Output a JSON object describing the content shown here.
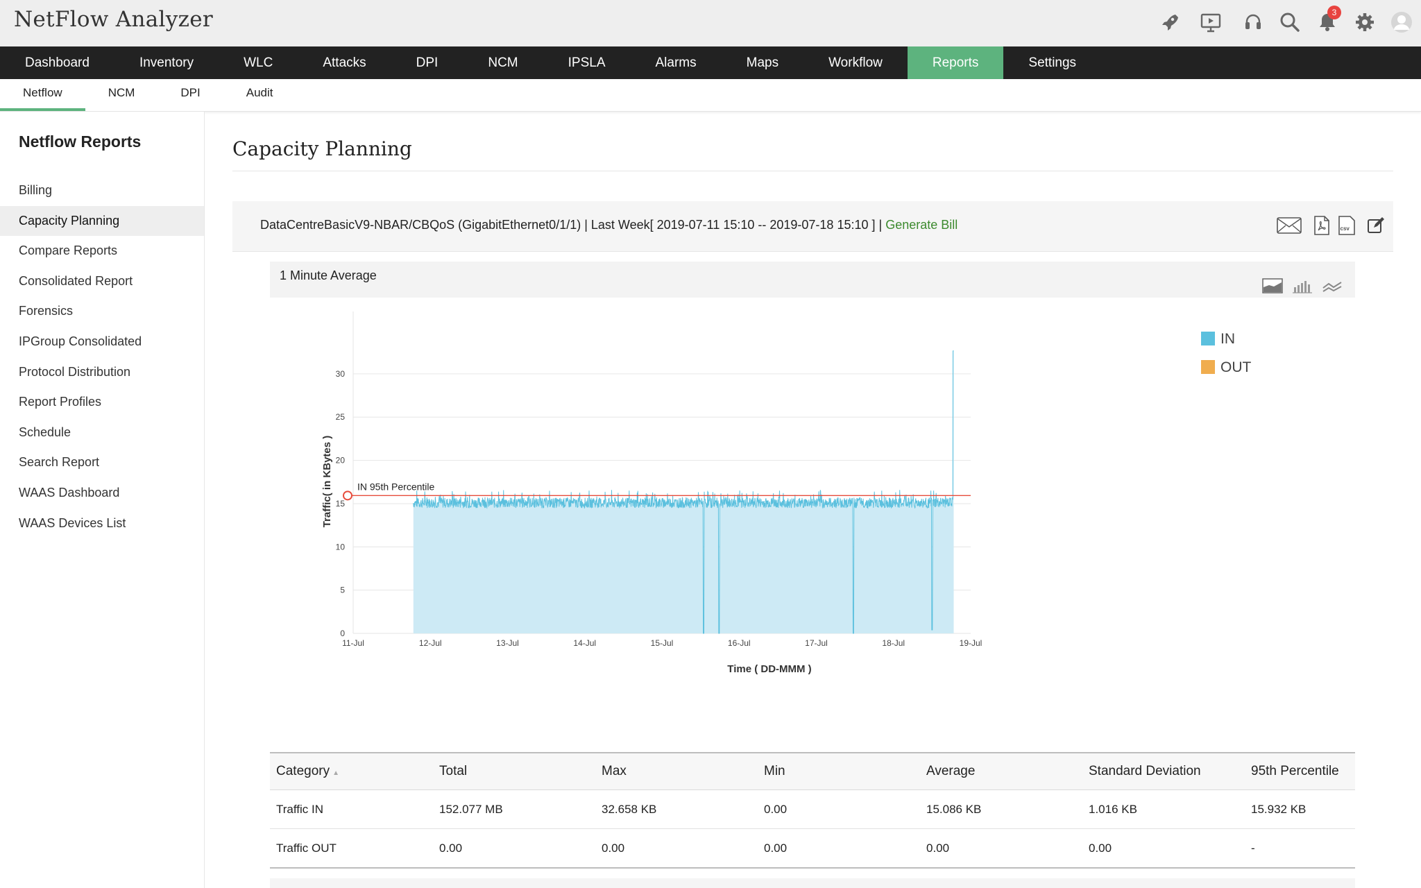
{
  "app": {
    "title": "NetFlow Analyzer",
    "notification_count": "3",
    "accent_color": "#5db37e"
  },
  "top_icons": [
    "rocket-icon",
    "presentation-icon",
    "headset-icon",
    "search-icon",
    "bell-icon",
    "gear-icon",
    "user-avatar-icon"
  ],
  "main_nav": {
    "items": [
      {
        "label": "Dashboard"
      },
      {
        "label": "Inventory"
      },
      {
        "label": "WLC"
      },
      {
        "label": "Attacks"
      },
      {
        "label": "DPI"
      },
      {
        "label": "NCM"
      },
      {
        "label": "IPSLA"
      },
      {
        "label": "Alarms"
      },
      {
        "label": "Maps"
      },
      {
        "label": "Workflow"
      },
      {
        "label": "Reports",
        "active": true
      },
      {
        "label": "Settings"
      }
    ]
  },
  "sub_nav": {
    "items": [
      {
        "label": "Netflow",
        "active": true
      },
      {
        "label": "NCM"
      },
      {
        "label": "DPI"
      },
      {
        "label": "Audit"
      }
    ]
  },
  "sidebar": {
    "title": "Netflow Reports",
    "items": [
      {
        "label": "Billing"
      },
      {
        "label": "Capacity Planning",
        "active": true
      },
      {
        "label": "Compare Reports"
      },
      {
        "label": "Consolidated Report"
      },
      {
        "label": "Forensics"
      },
      {
        "label": "IPGroup Consolidated"
      },
      {
        "label": "Protocol Distribution"
      },
      {
        "label": "Report Profiles"
      },
      {
        "label": "Schedule"
      },
      {
        "label": "Search Report"
      },
      {
        "label": "WAAS Dashboard"
      },
      {
        "label": "WAAS Devices List"
      }
    ]
  },
  "page": {
    "title": "Capacity Planning"
  },
  "report_bar": {
    "text": "DataCentreBasicV9-NBAR/CBQoS (GigabitEthernet0/1/1) | Last Week[ 2019-07-11 15:10 -- 2019-07-18 15:10 ] |",
    "generate_bill_label": "Generate Bill",
    "icons": [
      "email-icon",
      "pdf-icon",
      "csv-icon",
      "edit-icon"
    ]
  },
  "panel": {
    "title": "1 Minute Average",
    "chart_type_icons": [
      "area-chart-icon",
      "bar-chart-icon",
      "line-chart-icon"
    ]
  },
  "chart_data": {
    "type": "area",
    "xlabel": "Time ( DD-MMM )",
    "ylabel": "Traffic( in KBytes )",
    "x_ticks": [
      "11-Jul",
      "12-Jul",
      "13-Jul",
      "14-Jul",
      "15-Jul",
      "16-Jul",
      "17-Jul",
      "18-Jul",
      "19-Jul"
    ],
    "y_ticks": [
      0,
      5,
      10,
      15,
      20,
      25,
      30
    ],
    "ylim": [
      0,
      34
    ],
    "xlim_days": [
      11,
      19
    ],
    "grid": true,
    "legend_position": "top-right",
    "series": [
      {
        "name": "IN",
        "color": "#5bc0de",
        "fill": "#cdeaf5",
        "baseline": 15.086,
        "start_day": 11.78,
        "end_day": 18.78,
        "spikes": [
          {
            "day": 18.78,
            "value": 32.658
          }
        ],
        "dips": [
          {
            "day": 15.54,
            "value": 0
          },
          {
            "day": 15.74,
            "value": 0
          },
          {
            "day": 17.48,
            "value": 0
          },
          {
            "day": 18.5,
            "value": 0.4
          }
        ]
      },
      {
        "name": "OUT",
        "color": "#f0ad4e",
        "values_all": 0
      }
    ],
    "annotations": [
      {
        "label": "IN 95th Percentile",
        "value": 15.932,
        "color": "#e74c3c"
      }
    ]
  },
  "stats_table": {
    "columns": [
      "Category",
      "Total",
      "Max",
      "Min",
      "Average",
      "Standard Deviation",
      "95th Percentile"
    ],
    "rows": [
      [
        "Traffic IN",
        "152.077 MB",
        "32.658 KB",
        "0.00",
        "15.086 KB",
        "1.016 KB",
        "15.932 KB"
      ],
      [
        "Traffic OUT",
        "0.00",
        "0.00",
        "0.00",
        "0.00",
        "0.00",
        "-"
      ]
    ]
  }
}
